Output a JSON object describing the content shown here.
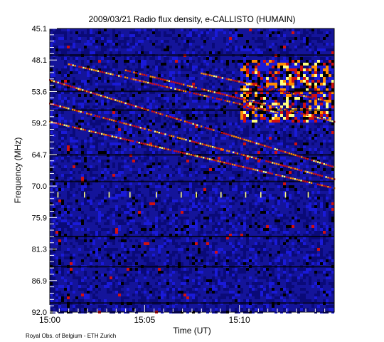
{
  "chart_data": {
    "type": "heatmap",
    "title": "2009/03/21  Radio flux density, e-CALLISTO (HUMAIN)",
    "xlabel": "Time (UT)",
    "ylabel": "Frequency (MHz)",
    "credit": "Royal Obs. of Belgium - ETH Zurich",
    "x_ticks": [
      "15:00",
      "15:05",
      "15:10"
    ],
    "x_tick_minutes": [
      0,
      5,
      10
    ],
    "x_range_minutes": [
      0,
      15
    ],
    "y_ticks": [
      "45.1",
      "48.1",
      "53.6",
      "59.2",
      "64.7",
      "70.0",
      "75.9",
      "81.3",
      "86.9",
      "92.0"
    ],
    "y_range_mhz": [
      45.1,
      92.0
    ],
    "y_inverted": true,
    "colormap": [
      "#000000",
      "#0a0a78",
      "#1a1ad8",
      "#d01010",
      "#ff8c00",
      "#ffff80"
    ],
    "features": [
      {
        "type": "drifting-burst",
        "start_min": 0.0,
        "start_mhz": 53.6,
        "end_min": 15.0,
        "end_mhz": 68.0
      },
      {
        "type": "drifting-burst",
        "start_min": 0.0,
        "start_mhz": 57.5,
        "end_min": 15.0,
        "end_mhz": 70.0
      },
      {
        "type": "drifting-burst",
        "start_min": 0.0,
        "start_mhz": 60.5,
        "end_min": 15.0,
        "end_mhz": 71.5
      },
      {
        "type": "drifting-burst",
        "start_min": 1.0,
        "start_mhz": 51.0,
        "end_min": 12.0,
        "end_mhz": 59.0
      },
      {
        "type": "drifting-burst",
        "start_min": 4.0,
        "start_mhz": 52.0,
        "end_min": 15.0,
        "end_mhz": 60.5
      },
      {
        "type": "drifting-burst",
        "start_min": 8.0,
        "start_mhz": 52.5,
        "end_min": 14.5,
        "end_mhz": 57.0
      }
    ],
    "hot_region": {
      "start_min": 10.0,
      "end_min": 15.0,
      "low_mhz": 50.0,
      "high_mhz": 60.5
    },
    "interference_mhz": [
      49.5,
      55.5,
      58.6,
      66.0,
      70.4,
      79.5,
      84.5,
      90.5
    ],
    "spike_row_mhz": 72.6,
    "spike_minutes": [
      0.4,
      1.8,
      3.1,
      4.2,
      5.6,
      6.9,
      7.7,
      9.0,
      10.3,
      11.1,
      12.4,
      13.6
    ]
  }
}
